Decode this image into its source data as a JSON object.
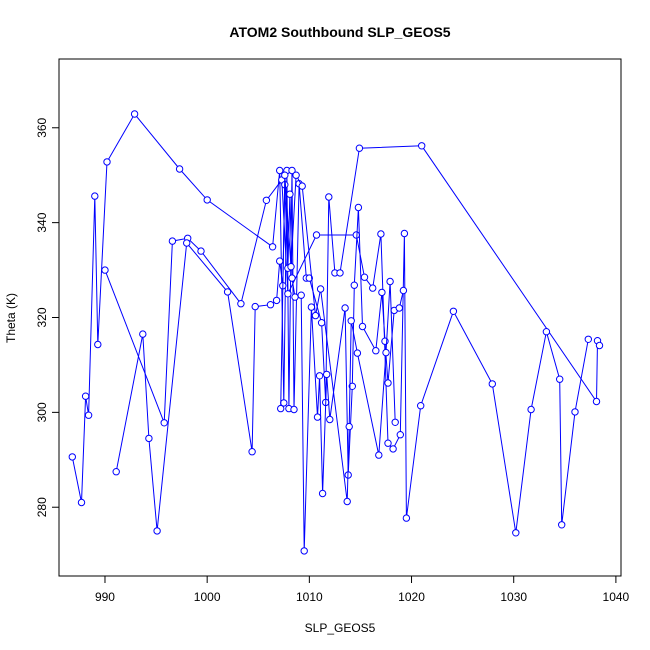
{
  "chart_data": {
    "type": "line",
    "title": "ATOM2 Southbound SLP_GEOS5",
    "xlabel": "SLP_GEOS5",
    "ylabel": "Theta (K)",
    "xlim": [
      985.5,
      1040.5
    ],
    "ylim": [
      265.5,
      374.5
    ],
    "xticks": [
      990,
      1000,
      1010,
      1020,
      1030,
      1040
    ],
    "yticks": [
      280,
      300,
      320,
      340,
      360
    ],
    "grid": false,
    "legend": "none",
    "series": [
      {
        "color": "#0000ff",
        "marker": "open-circle",
        "points": [
          [
            986.8,
            290.6
          ],
          [
            987.7,
            281.0
          ],
          [
            988.1,
            303.4
          ],
          [
            988.4,
            299.4
          ],
          [
            989.0,
            345.6
          ],
          [
            989.3,
            314.3
          ],
          [
            990.2,
            352.8
          ],
          [
            992.9,
            362.9
          ],
          [
            997.3,
            351.3
          ],
          [
            1000.0,
            344.8
          ],
          [
            1006.4,
            334.9
          ],
          [
            1007.1,
            351.0
          ],
          [
            1007.5,
            302.0
          ],
          [
            1007.8,
            351.0
          ],
          [
            1008.0,
            300.8
          ],
          [
            1008.3,
            351.0
          ],
          [
            1008.5,
            300.6
          ],
          [
            1009.0,
            348.2
          ],
          [
            1009.7,
            328.3
          ],
          [
            1010.0,
            328.3
          ],
          [
            1011.2,
            318.9
          ],
          [
            1011.6,
            302.1
          ],
          [
            1011.9,
            345.4
          ],
          [
            1012.5,
            329.4
          ],
          [
            1013.0,
            329.4
          ],
          [
            1014.9,
            355.7
          ],
          [
            1021.0,
            356.2
          ],
          [
            1038.1,
            302.3
          ],
          [
            1038.2,
            315.1
          ],
          [
            1038.4,
            314.1
          ]
        ]
      },
      {
        "color": "#0000ff",
        "marker": "open-circle",
        "points": [
          [
            990.0,
            330.0
          ],
          [
            995.8,
            297.8
          ],
          [
            996.6,
            336.1
          ],
          [
            998.1,
            336.7
          ],
          [
            999.4,
            334.0
          ],
          [
            1003.3,
            322.9
          ],
          [
            1005.8,
            344.7
          ],
          [
            1007.3,
            349.0
          ],
          [
            1007.9,
            325.0
          ],
          [
            1010.7,
            337.4
          ],
          [
            1014.6,
            337.4
          ],
          [
            1015.4,
            328.5
          ],
          [
            1016.2,
            326.2
          ],
          [
            1017.0,
            337.6
          ],
          [
            1017.7,
            293.5
          ],
          [
            1018.2,
            292.3
          ],
          [
            1018.9,
            295.3
          ],
          [
            1019.3,
            337.7
          ],
          [
            1019.5,
            277.7
          ],
          [
            1020.9,
            301.4
          ],
          [
            1024.1,
            321.3
          ],
          [
            1027.9,
            306.0
          ],
          [
            1030.2,
            274.6
          ],
          [
            1031.7,
            300.6
          ],
          [
            1033.2,
            317.0
          ],
          [
            1034.5,
            307.0
          ],
          [
            1034.7,
            276.3
          ],
          [
            1036.0,
            300.1
          ],
          [
            1037.3,
            315.4
          ]
        ]
      },
      {
        "color": "#0000ff",
        "marker": "open-circle",
        "points": [
          [
            991.1,
            287.5
          ],
          [
            993.7,
            316.5
          ],
          [
            994.3,
            294.5
          ],
          [
            995.1,
            275.0
          ],
          [
            998.0,
            335.7
          ],
          [
            1002.0,
            325.4
          ],
          [
            1004.4,
            291.7
          ],
          [
            1004.7,
            322.3
          ],
          [
            1006.2,
            322.7
          ],
          [
            1006.8,
            323.6
          ],
          [
            1007.1,
            331.9
          ],
          [
            1007.4,
            326.7
          ],
          [
            1007.6,
            348.0
          ],
          [
            1007.9,
            330.4
          ],
          [
            1008.1,
            346.0
          ],
          [
            1008.3,
            328.3
          ],
          [
            1008.6,
            324.3
          ],
          [
            1009.2,
            324.7
          ],
          [
            1009.5,
            270.8
          ],
          [
            1010.2,
            322.2
          ],
          [
            1010.8,
            299.0
          ],
          [
            1011.0,
            307.7
          ],
          [
            1011.3,
            282.9
          ],
          [
            1011.7,
            308.0
          ],
          [
            1012.0,
            298.5
          ],
          [
            1013.5,
            322.0
          ],
          [
            1013.8,
            286.8
          ],
          [
            1014.2,
            305.5
          ],
          [
            1014.4,
            326.8
          ],
          [
            1014.8,
            343.2
          ],
          [
            1015.2,
            318.1
          ],
          [
            1016.5,
            313.0
          ],
          [
            1017.1,
            325.3
          ],
          [
            1017.4,
            315.0
          ],
          [
            1017.7,
            306.2
          ],
          [
            1018.3,
            321.5
          ],
          [
            1018.8,
            322.0
          ],
          [
            1019.2,
            325.7
          ]
        ]
      },
      {
        "color": "#0000ff",
        "marker": "open-circle",
        "points": [
          [
            1007.2,
            300.8
          ],
          [
            1007.6,
            350.0
          ],
          [
            1008.2,
            330.7
          ],
          [
            1008.7,
            350.0
          ],
          [
            1009.3,
            347.7
          ],
          [
            1010.6,
            320.4
          ],
          [
            1011.1,
            326.0
          ],
          [
            1013.7,
            281.2
          ],
          [
            1013.9,
            297.0
          ],
          [
            1014.1,
            319.3
          ],
          [
            1014.7,
            312.5
          ],
          [
            1016.8,
            291.0
          ],
          [
            1017.5,
            312.6
          ],
          [
            1017.9,
            327.6
          ],
          [
            1018.4,
            297.9
          ]
        ]
      }
    ]
  }
}
